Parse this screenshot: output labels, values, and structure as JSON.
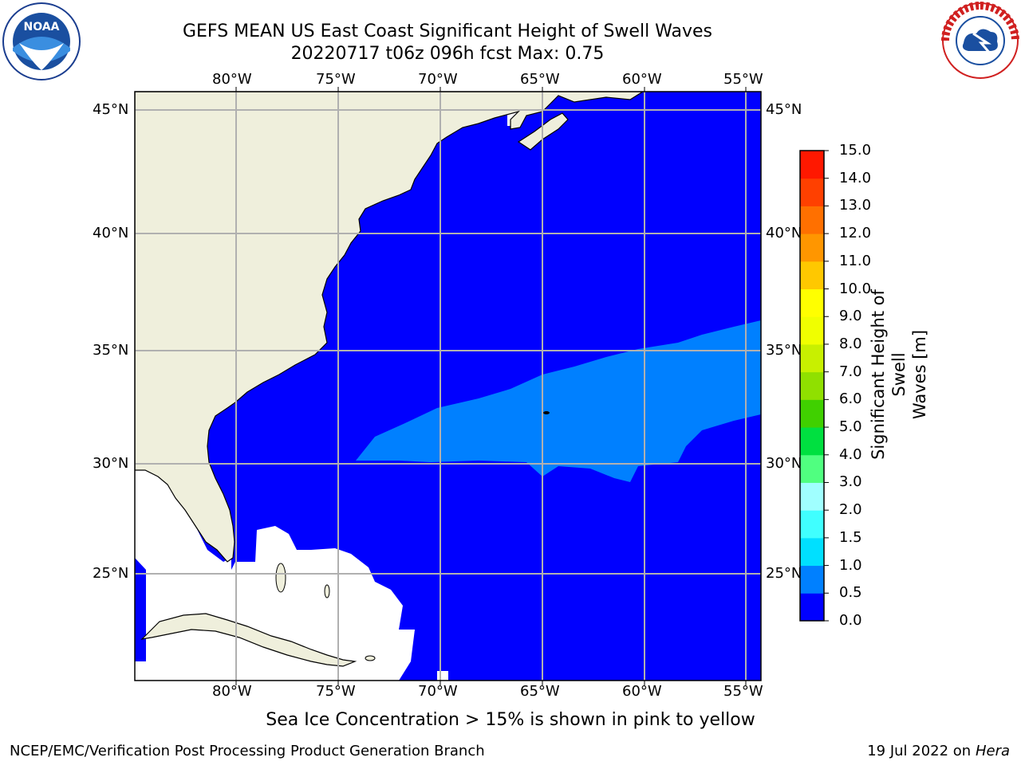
{
  "title": "GEFS MEAN US East Coast Significant Height of Swell Waves",
  "subtitle": "20220717 t06z 096h fcst   Max: 0.75",
  "map": {
    "lon_labels": [
      "80°W",
      "75°W",
      "70°W",
      "65°W",
      "60°W",
      "55°W"
    ],
    "lat_labels": [
      "45°N",
      "40°N",
      "35°N",
      "30°N",
      "25°N"
    ],
    "colors": {
      "land": "#efefdc",
      "ocean": "#0000ff",
      "swell_05_10": "#0080ff",
      "ice_mask": "#ffffff",
      "grid": "#b0b0b0"
    }
  },
  "colorbar": {
    "title": "Significant Height of Swell Waves [m]",
    "title_line1": "Significant Height of Swell",
    "title_line2": "Waves [m]",
    "ticks": [
      "0.0",
      "0.5",
      "1.0",
      "1.5",
      "2.0",
      "3.0",
      "4.0",
      "5.0",
      "6.0",
      "7.0",
      "8.0",
      "9.0",
      "10.0",
      "11.0",
      "12.0",
      "13.0",
      "14.0",
      "15.0"
    ],
    "colors": [
      "#0000ff",
      "#0080ff",
      "#00e0ff",
      "#40ffff",
      "#a0ffff",
      "#50ff80",
      "#00e040",
      "#40d000",
      "#90e000",
      "#c8f000",
      "#f0ff00",
      "#ffff00",
      "#ffc800",
      "#ff9600",
      "#ff7000",
      "#ff4000",
      "#ff1800"
    ]
  },
  "note": "Sea Ice Concentration > 15% is shown in pink to yellow",
  "footer_left": "NCEP/EMC/Verification Post Processing Product Generation Branch",
  "footer_right_date": "19 Jul 2022 on ",
  "footer_right_host": "Hera",
  "logos": {
    "left": "NOAA",
    "right": "NATIONAL WEATHER SERVICE"
  }
}
